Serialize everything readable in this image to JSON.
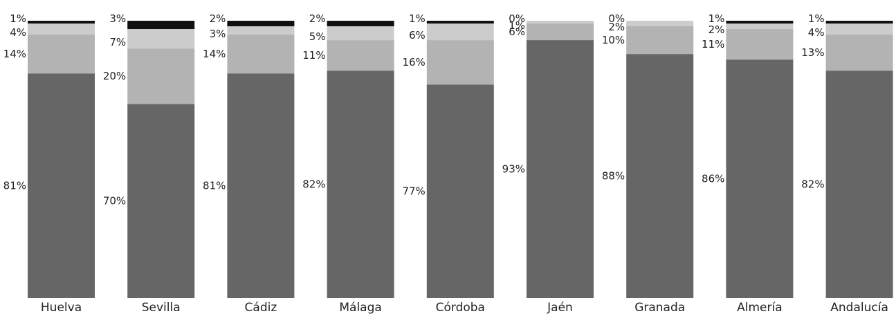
{
  "chart_data": {
    "type": "bar",
    "stacked": true,
    "percent_stacked": true,
    "categories": [
      "Huelva",
      "Sevilla",
      "Cádiz",
      "Málaga",
      "Córdoba",
      "Jaén",
      "Granada",
      "Almería",
      "Andalucía"
    ],
    "series": [
      {
        "values": [
          81,
          70,
          81,
          82,
          77,
          93,
          88,
          86,
          82
        ],
        "labels": [
          "81%",
          "70%",
          "81%",
          "82%",
          "77%",
          "93%",
          "88%",
          "86%",
          "82%"
        ],
        "color": "#666666"
      },
      {
        "values": [
          14,
          20,
          14,
          11,
          16,
          6,
          10,
          11,
          13
        ],
        "labels": [
          "14%",
          "20%",
          "14%",
          "11%",
          "16%",
          "6%",
          "10%",
          "11%",
          "13%"
        ],
        "color": "#b3b3b3"
      },
      {
        "values": [
          4,
          7,
          3,
          5,
          6,
          1,
          2,
          2,
          4
        ],
        "labels": [
          "4%",
          "7%",
          "3%",
          "5%",
          "6%",
          "1%",
          "2%",
          "2%",
          "4%"
        ],
        "color": "#cccccc"
      },
      {
        "values": [
          1,
          3,
          2,
          2,
          1,
          0,
          0,
          1,
          1
        ],
        "labels": [
          "1%",
          "3%",
          "2%",
          "2%",
          "1%",
          "0%",
          "0%",
          "1%",
          "1%"
        ],
        "color": "#111111"
      }
    ],
    "title": "",
    "xlabel": "",
    "ylabel": "",
    "ylim": [
      0,
      100
    ],
    "grid": false,
    "legend": "none"
  }
}
